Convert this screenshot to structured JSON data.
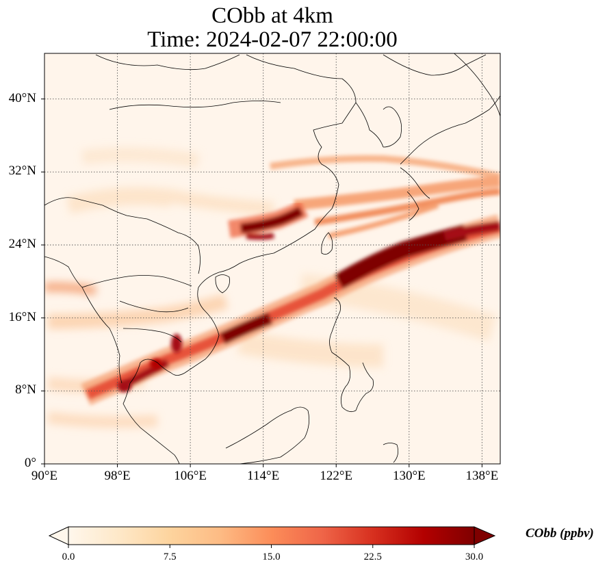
{
  "title_line1": "CObb at 4km",
  "title_line2": "Time: 2024-02-07 22:00:00",
  "map": {
    "extent": {
      "lon": [
        90,
        140
      ],
      "lat": [
        0,
        45
      ]
    },
    "lon_ticks": [
      {
        "value": 90,
        "label": "90°E"
      },
      {
        "value": 98,
        "label": "98°E"
      },
      {
        "value": 106,
        "label": "106°E"
      },
      {
        "value": 114,
        "label": "114°E"
      },
      {
        "value": 122,
        "label": "122°E"
      },
      {
        "value": 130,
        "label": "130°E"
      },
      {
        "value": 138,
        "label": "138°E"
      }
    ],
    "lat_ticks": [
      {
        "value": 0,
        "label": "0°"
      },
      {
        "value": 8,
        "label": "8°N"
      },
      {
        "value": 16,
        "label": "16°N"
      },
      {
        "value": 24,
        "label": "24°N"
      },
      {
        "value": 32,
        "label": "32°N"
      },
      {
        "value": 40,
        "label": "40°N"
      }
    ],
    "gridlines": true,
    "background_color": "#fff5eb",
    "coastline_color": "#000000"
  },
  "colorbar": {
    "label": "CObb (ppbv)",
    "min": 0.0,
    "max": 30.0,
    "extend": "both",
    "colormap": "OrRd",
    "ticks": [
      "0.0",
      "7.5",
      "15.0",
      "22.5",
      "30.0"
    ],
    "tick_values": [
      0,
      7.5,
      15,
      22.5,
      30
    ]
  },
  "plumes": [
    {
      "name": "indochina-to-pacific-band",
      "level": "high"
    },
    {
      "name": "south-china-east-china-sea-patch",
      "level": "high"
    },
    {
      "name": "taiwan-to-japan-band",
      "level": "high"
    },
    {
      "name": "yellow-sea-to-japan-band",
      "level": "medium"
    }
  ]
}
